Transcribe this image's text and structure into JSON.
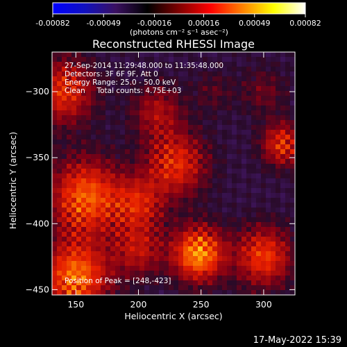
{
  "colorbar": {
    "ticks": [
      "-0.00082",
      "-0.00049",
      "-0.00016",
      "0.00016",
      "0.00049",
      "0.00082"
    ],
    "range": [
      -0.00082,
      0.00082
    ],
    "unit_label": "(photons cm⁻² s⁻¹ asec⁻²)",
    "colors": [
      "#0000ff",
      "#1010c0",
      "#3a1060",
      "#000000",
      "#800000",
      "#ff0000",
      "#ff8000",
      "#ffff00",
      "#ffffff"
    ]
  },
  "annotations": {
    "time": "27-Sep-2014 11:29:48.000 to 11:35:48.000",
    "detectors": "Detectors: 3F 6F 9F, Att 0",
    "energy": "Energy Range: 25.0 - 50.0 keV",
    "clean": "Clean     Total counts: 4.75E+03",
    "peak": "Position of Peak = [248,-423]"
  },
  "footer": {
    "date": "17-May-2022 15:39"
  },
  "chart_data": {
    "type": "heatmap",
    "title": "Reconstructed RHESSI Image",
    "xlabel": "Heliocentric X (arcsec)",
    "ylabel": "Heliocentric Y (arcsec)",
    "xlim": [
      131,
      325
    ],
    "ylim": [
      -454,
      -270
    ],
    "xticks": [
      150,
      200,
      250,
      300
    ],
    "yticks": [
      -300,
      -350,
      -400,
      -450
    ],
    "peak": [
      248,
      -423
    ],
    "value_range": [
      -0.00082,
      0.00082
    ]
  }
}
